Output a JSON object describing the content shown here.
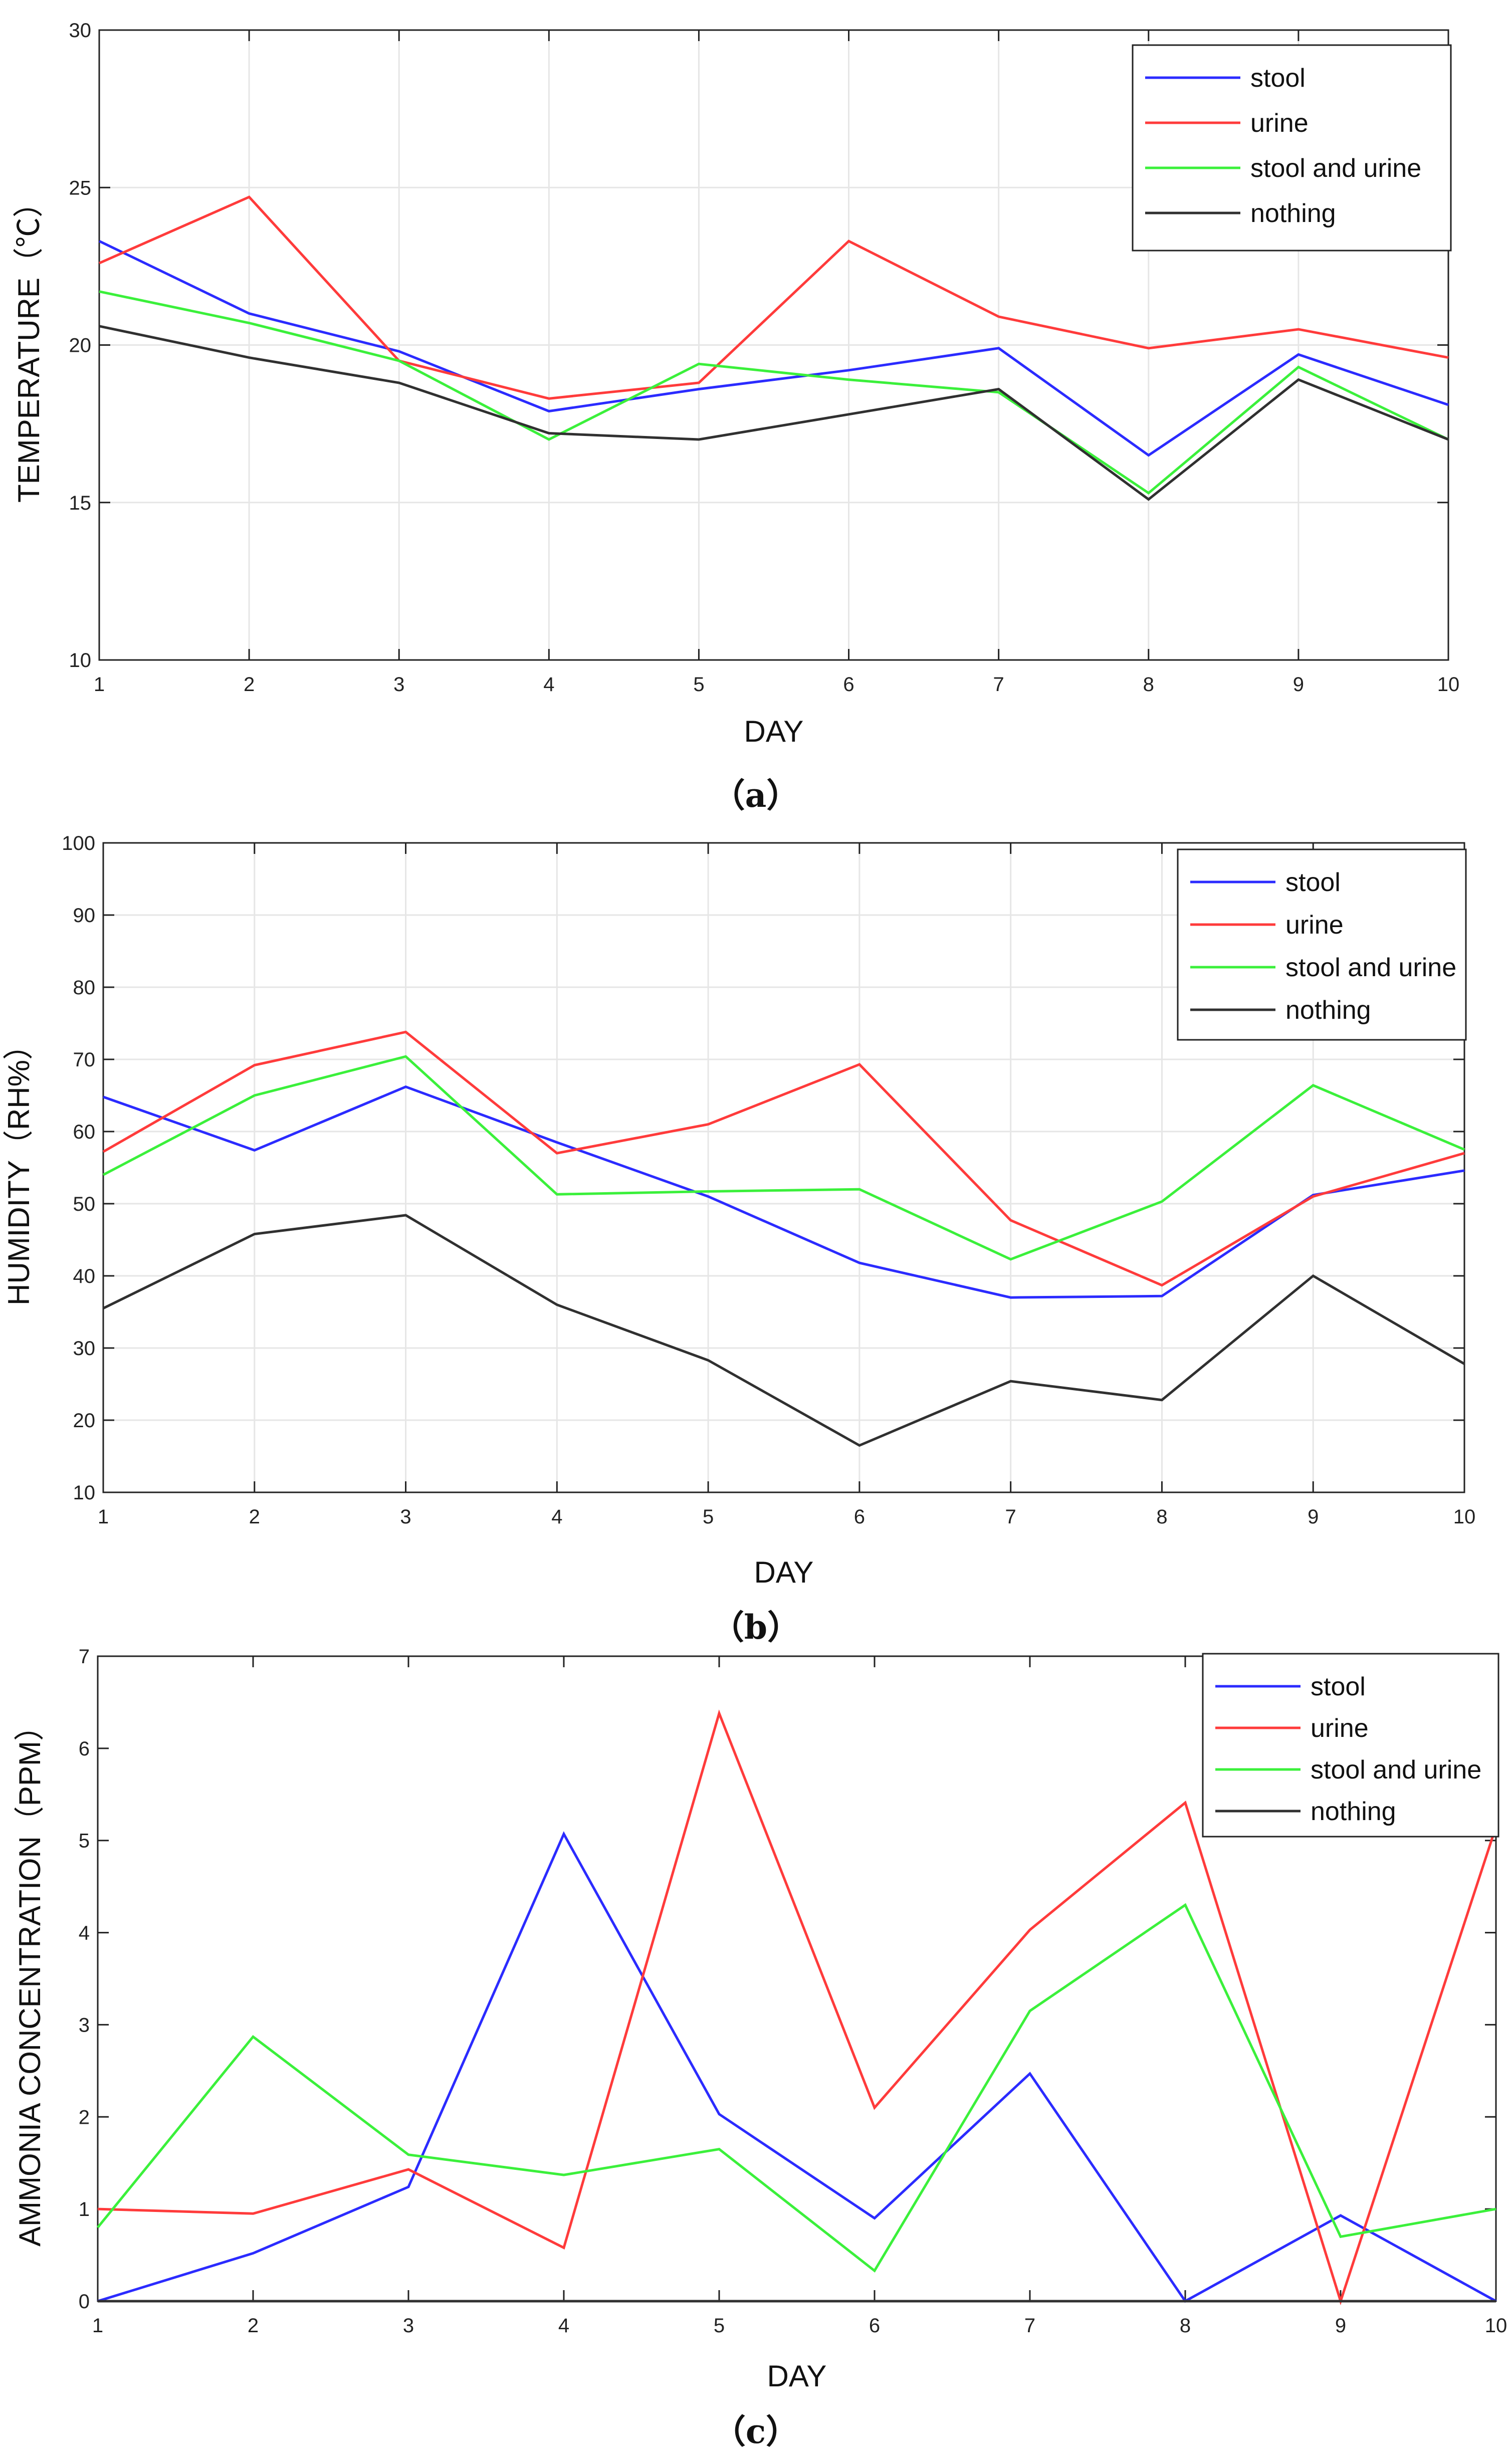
{
  "colors": {
    "stool": "#2b2bff",
    "urine": "#ff3b3b",
    "stool_and_urine": "#3bf03b",
    "nothing": "#303030",
    "grid": "#e6e6e6",
    "axis": "#222222"
  },
  "chart_data": [
    {
      "type": "line",
      "panel_label": "（a）",
      "xlabel": "DAY",
      "ylabel": "TEMPERATURE（℃）",
      "xlim": [
        1,
        10
      ],
      "ylim": [
        10,
        30
      ],
      "x_ticks": [
        1,
        2,
        3,
        4,
        5,
        6,
        7,
        8,
        9,
        10
      ],
      "y_ticks": [
        10,
        15,
        20,
        25,
        30
      ],
      "grid": true,
      "legend_position": "top-right",
      "x": [
        1,
        2,
        3,
        4,
        5,
        6,
        7,
        8,
        9,
        10
      ],
      "series": [
        {
          "name": "stool",
          "color_key": "stool",
          "values": [
            23.3,
            21.0,
            19.8,
            17.9,
            18.6,
            19.2,
            19.9,
            16.5,
            19.7,
            18.1
          ]
        },
        {
          "name": "urine",
          "color_key": "urine",
          "values": [
            22.6,
            24.7,
            19.5,
            18.3,
            18.8,
            23.3,
            20.9,
            19.9,
            20.5,
            19.6
          ]
        },
        {
          "name": "stool and urine",
          "color_key": "stool_and_urine",
          "values": [
            21.7,
            20.7,
            19.5,
            17.0,
            19.4,
            18.9,
            18.5,
            15.3,
            19.3,
            17.0
          ]
        },
        {
          "name": "nothing",
          "color_key": "nothing",
          "values": [
            20.6,
            19.6,
            18.8,
            17.2,
            17.0,
            17.8,
            18.6,
            15.1,
            18.9,
            17.0
          ]
        }
      ]
    },
    {
      "type": "line",
      "panel_label": "（b）",
      "xlabel": "DAY",
      "ylabel": "HUMIDITY（RH%）",
      "xlim": [
        1,
        10
      ],
      "ylim": [
        10,
        100
      ],
      "x_ticks": [
        1,
        2,
        3,
        4,
        5,
        6,
        7,
        8,
        9,
        10
      ],
      "y_ticks": [
        10,
        20,
        30,
        40,
        50,
        60,
        70,
        80,
        90,
        100
      ],
      "grid": true,
      "legend_position": "top-right",
      "x": [
        1,
        2,
        3,
        4,
        5,
        6,
        7,
        8,
        9,
        10
      ],
      "series": [
        {
          "name": "stool",
          "color_key": "stool",
          "values": [
            64.8,
            57.4,
            66.2,
            58.5,
            51.0,
            41.8,
            37.0,
            37.2,
            51.2,
            54.6
          ]
        },
        {
          "name": "urine",
          "color_key": "urine",
          "values": [
            57.2,
            69.2,
            73.8,
            57.0,
            61.0,
            69.3,
            47.7,
            38.7,
            51.0,
            57.0
          ]
        },
        {
          "name": "stool and urine",
          "color_key": "stool_and_urine",
          "values": [
            54.0,
            65.0,
            70.4,
            51.3,
            51.7,
            52.0,
            42.3,
            50.3,
            66.4,
            57.5
          ]
        },
        {
          "name": "nothing",
          "color_key": "nothing",
          "values": [
            35.5,
            45.8,
            48.4,
            36.0,
            28.3,
            16.5,
            25.4,
            22.8,
            40.0,
            27.8
          ]
        }
      ]
    },
    {
      "type": "line",
      "panel_label": "（c）",
      "xlabel": "DAY",
      "ylabel": "AMMONIA CONCENTRATION（PPM）",
      "xlim": [
        1,
        10
      ],
      "ylim": [
        0,
        7
      ],
      "x_ticks": [
        1,
        2,
        3,
        4,
        5,
        6,
        7,
        8,
        9,
        10
      ],
      "y_ticks": [
        0,
        1,
        2,
        3,
        4,
        5,
        6,
        7
      ],
      "grid": false,
      "legend_position": "top-right",
      "x": [
        1,
        2,
        3,
        4,
        5,
        6,
        7,
        8,
        9,
        10
      ],
      "series": [
        {
          "name": "stool",
          "color_key": "stool",
          "values": [
            0.0,
            0.52,
            1.24,
            5.07,
            2.03,
            0.9,
            2.47,
            0.0,
            0.93,
            0.0
          ]
        },
        {
          "name": "urine",
          "color_key": "urine",
          "values": [
            1.0,
            0.95,
            1.43,
            0.58,
            6.38,
            2.1,
            4.03,
            5.41,
            0.0,
            5.15
          ]
        },
        {
          "name": "stool and urine",
          "color_key": "stool_and_urine",
          "values": [
            0.8,
            2.87,
            1.59,
            1.37,
            1.65,
            0.33,
            3.15,
            4.3,
            0.7,
            1.0
          ]
        },
        {
          "name": "nothing",
          "color_key": "nothing",
          "values": [
            0,
            0,
            0,
            0,
            0,
            0,
            0,
            0,
            0,
            0
          ]
        }
      ]
    }
  ]
}
